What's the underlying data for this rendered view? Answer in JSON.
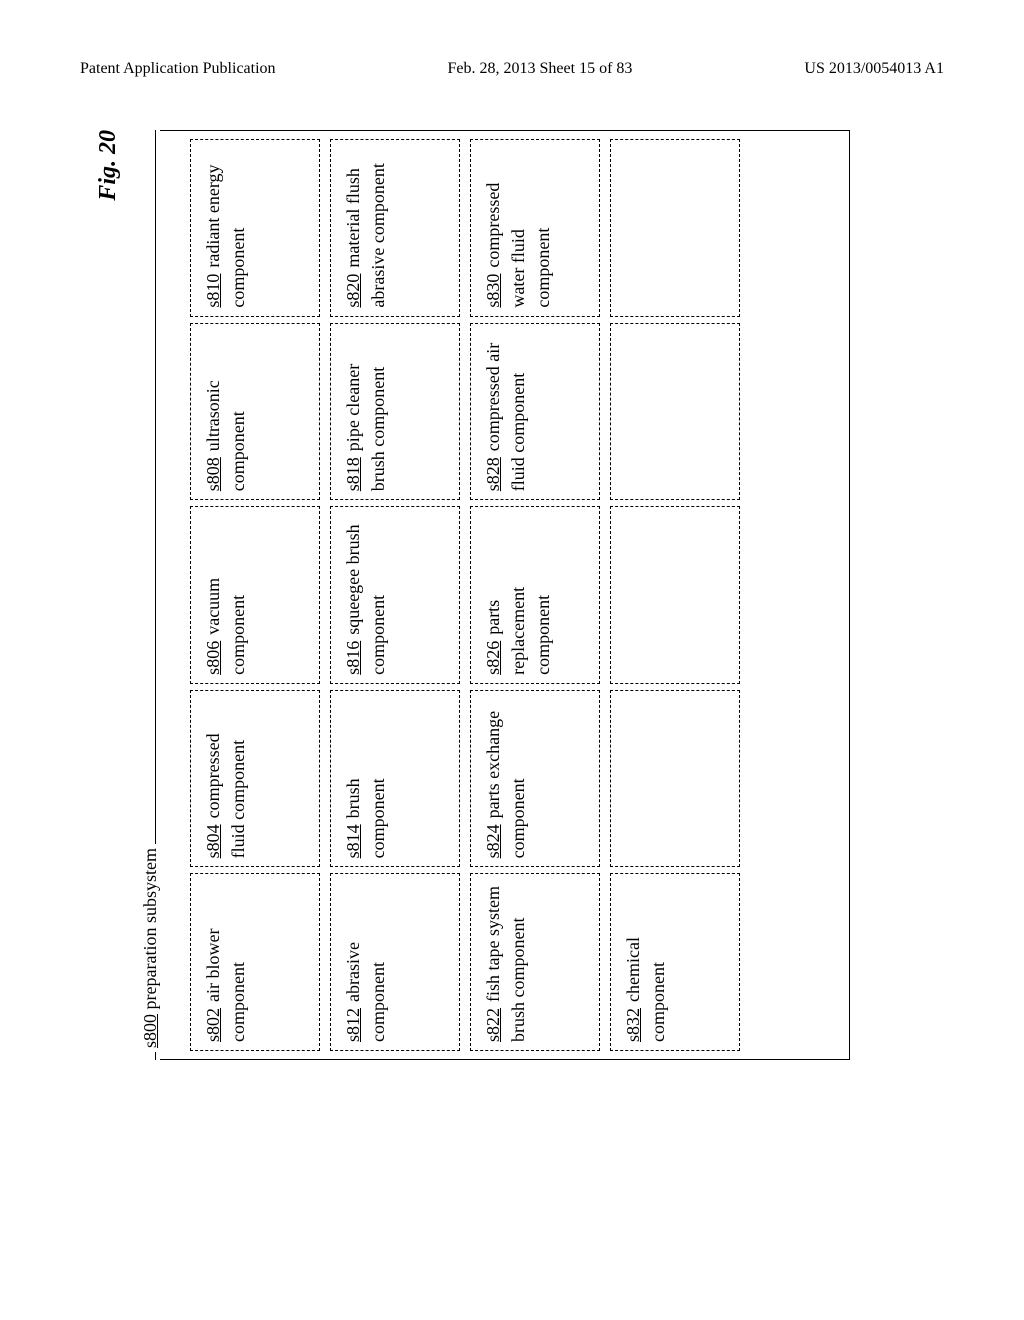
{
  "header": {
    "left": "Patent Application Publication",
    "center": "Feb. 28, 2013  Sheet 15 of 83",
    "right": "US 2013/0054013 A1"
  },
  "figure": {
    "label": "Fig. 20",
    "outer": {
      "ref": "s800",
      "text": "preparation subsystem"
    },
    "grid": {
      "columns": 5,
      "rows": 4,
      "cells": [
        {
          "ref": "s802",
          "text": "air blower component"
        },
        {
          "ref": "s804",
          "text": "compressed fluid component"
        },
        {
          "ref": "s806",
          "text": "vacuum component"
        },
        {
          "ref": "s808",
          "text": "ultrasonic component"
        },
        {
          "ref": "s810",
          "text": "radiant energy component"
        },
        {
          "ref": "s812",
          "text": "abrasive component"
        },
        {
          "ref": "s814",
          "text": "brush component"
        },
        {
          "ref": "s816",
          "text": "squeegee brush component"
        },
        {
          "ref": "s818",
          "text": "pipe cleaner brush component"
        },
        {
          "ref": "s820",
          "text": "material flush abrasive component"
        },
        {
          "ref": "s822",
          "text": "fish tape system brush component"
        },
        {
          "ref": "s824",
          "text": "parts exchange component"
        },
        {
          "ref": "s826",
          "text": "parts replacement component"
        },
        {
          "ref": "s828",
          "text": "compressed air fluid component"
        },
        {
          "ref": "s830",
          "text": "compressed water fluid component"
        },
        {
          "ref": "s832",
          "text": "chemical component"
        },
        {
          "empty": true
        },
        {
          "empty": true
        },
        {
          "empty": true
        },
        {
          "empty": true
        }
      ]
    }
  },
  "style": {
    "font_family": "Times New Roman",
    "cell_border": "1.5px dashed #000000",
    "outer_border": "1.5px solid #000000",
    "background": "#ffffff",
    "text_color": "#000000",
    "fig_label_fontsize": 24,
    "body_fontsize": 18,
    "header_fontsize": 16
  }
}
